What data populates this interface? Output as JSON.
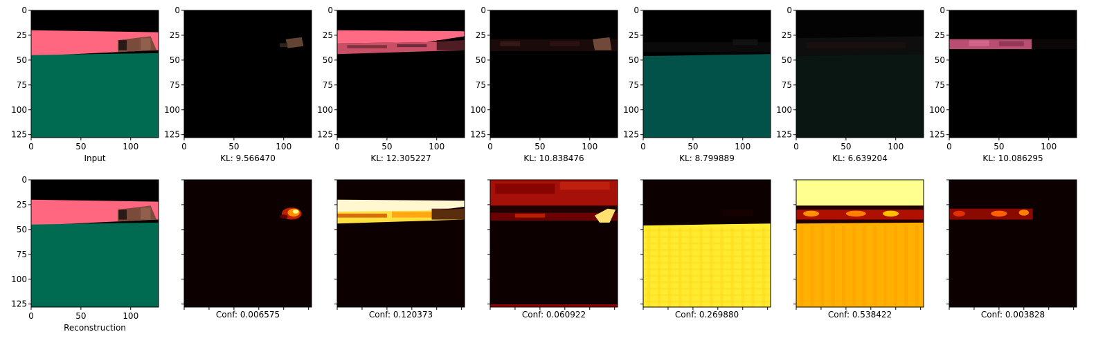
{
  "chart_data": [
    {
      "type": "image",
      "panel": "input",
      "row": 0,
      "col": 0,
      "xlabel": "Input",
      "xticks": [
        "0",
        "50",
        "100"
      ],
      "yticks": [
        "0",
        "25",
        "50",
        "75",
        "100",
        "125"
      ],
      "content": "segmentation-rgb"
    },
    {
      "type": "image",
      "panel": "component",
      "row": 0,
      "col": 1,
      "xlabel": "KL: 9.566470",
      "xticks": [
        "0",
        "50",
        "100"
      ],
      "yticks": [
        "0",
        "25",
        "50",
        "75",
        "100",
        "125"
      ],
      "content": "rgb-component-1"
    },
    {
      "type": "image",
      "panel": "component",
      "row": 0,
      "col": 2,
      "xlabel": "KL: 12.305227",
      "xticks": [
        "0",
        "50",
        "100"
      ],
      "yticks": [
        "0",
        "25",
        "50",
        "75",
        "100",
        "125"
      ],
      "content": "rgb-component-2"
    },
    {
      "type": "image",
      "panel": "component",
      "row": 0,
      "col": 3,
      "xlabel": "KL: 10.838476",
      "xticks": [
        "0",
        "50",
        "100"
      ],
      "yticks": [
        "0",
        "25",
        "50",
        "75",
        "100",
        "125"
      ],
      "content": "rgb-component-3"
    },
    {
      "type": "image",
      "panel": "component",
      "row": 0,
      "col": 4,
      "xlabel": "KL: 8.799889",
      "xticks": [
        "0",
        "50",
        "100"
      ],
      "yticks": [
        "0",
        "25",
        "50",
        "75",
        "100",
        "125"
      ],
      "content": "rgb-component-4"
    },
    {
      "type": "image",
      "panel": "component",
      "row": 0,
      "col": 5,
      "xlabel": "KL: 6.639204",
      "xticks": [
        "0",
        "50",
        "100"
      ],
      "yticks": [
        "0",
        "25",
        "50",
        "75",
        "100",
        "125"
      ],
      "content": "rgb-component-5"
    },
    {
      "type": "image",
      "panel": "component",
      "row": 0,
      "col": 6,
      "xlabel": "KL: 10.086295",
      "xticks": [
        "0",
        "50",
        "100"
      ],
      "yticks": [
        "0",
        "25",
        "50",
        "75",
        "100",
        "125"
      ],
      "content": "rgb-component-6"
    },
    {
      "type": "image",
      "panel": "reconstruction",
      "row": 1,
      "col": 0,
      "xlabel": "Reconstruction",
      "xticks": [
        "0",
        "50",
        "100"
      ],
      "yticks": [
        "0",
        "25",
        "50",
        "75",
        "100",
        "125"
      ],
      "content": "segmentation-rgb"
    },
    {
      "type": "heatmap",
      "panel": "mask",
      "row": 1,
      "col": 1,
      "xlabel": "Conf: 0.006575",
      "colormap": "hot",
      "content": "mask-1"
    },
    {
      "type": "heatmap",
      "panel": "mask",
      "row": 1,
      "col": 2,
      "xlabel": "Conf: 0.120373",
      "colormap": "hot",
      "content": "mask-2"
    },
    {
      "type": "heatmap",
      "panel": "mask",
      "row": 1,
      "col": 3,
      "xlabel": "Conf: 0.060922",
      "colormap": "hot",
      "content": "mask-3"
    },
    {
      "type": "heatmap",
      "panel": "mask",
      "row": 1,
      "col": 4,
      "xlabel": "Conf: 0.269880",
      "colormap": "hot",
      "content": "mask-4"
    },
    {
      "type": "heatmap",
      "panel": "mask",
      "row": 1,
      "col": 5,
      "xlabel": "Conf: 0.538422",
      "colormap": "hot",
      "content": "mask-5"
    },
    {
      "type": "heatmap",
      "panel": "mask",
      "row": 1,
      "col": 6,
      "xlabel": "Conf: 0.003828",
      "colormap": "hot",
      "content": "mask-6"
    }
  ],
  "colors": {
    "sky": "#000000",
    "pink": "#ff6680",
    "green": "#016b51",
    "brown": "#7a4a3a",
    "hot_dark": "#0d0000"
  }
}
